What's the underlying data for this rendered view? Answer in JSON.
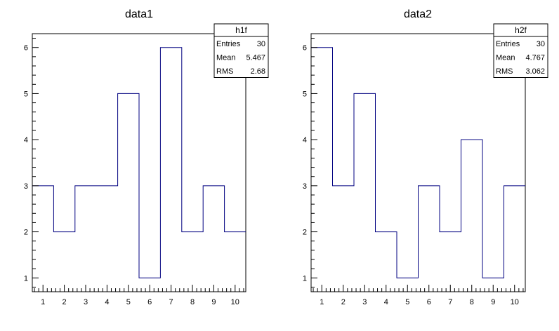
{
  "chart_data": [
    {
      "type": "histogram",
      "title": "data1",
      "xlabel": "",
      "ylabel": "",
      "xlim": [
        0.5,
        10.5
      ],
      "ylim": [
        0.7,
        6.3
      ],
      "bin_edges": [
        0.5,
        1.5,
        2.5,
        3.5,
        4.5,
        5.5,
        6.5,
        7.5,
        8.5,
        9.5,
        10.5
      ],
      "values": [
        3,
        2,
        3,
        3,
        5,
        1,
        6,
        2,
        3,
        2
      ],
      "line_color": "#000080",
      "x_ticks": [
        "1",
        "2",
        "3",
        "4",
        "5",
        "6",
        "7",
        "8",
        "9",
        "10"
      ],
      "y_ticks": [
        "1",
        "2",
        "3",
        "4",
        "5",
        "6"
      ],
      "stats": {
        "name": "h1f",
        "rows": [
          {
            "label": "Entries",
            "value": "30"
          },
          {
            "label": "Mean",
            "value": "5.467"
          },
          {
            "label": "RMS",
            "value": "2.68"
          }
        ]
      }
    },
    {
      "type": "histogram",
      "title": "data2",
      "xlabel": "",
      "ylabel": "",
      "xlim": [
        0.5,
        10.5
      ],
      "ylim": [
        0.7,
        6.3
      ],
      "bin_edges": [
        0.5,
        1.5,
        2.5,
        3.5,
        4.5,
        5.5,
        6.5,
        7.5,
        8.5,
        9.5,
        10.5
      ],
      "values": [
        6,
        3,
        5,
        2,
        1,
        3,
        2,
        4,
        1,
        3
      ],
      "line_color": "#000080",
      "x_ticks": [
        "1",
        "2",
        "3",
        "4",
        "5",
        "6",
        "7",
        "8",
        "9",
        "10"
      ],
      "y_ticks": [
        "1",
        "2",
        "3",
        "4",
        "5",
        "6"
      ],
      "stats": {
        "name": "h2f",
        "rows": [
          {
            "label": "Entries",
            "value": "30"
          },
          {
            "label": "Mean",
            "value": "4.767"
          },
          {
            "label": "RMS",
            "value": "3.062"
          }
        ]
      }
    }
  ]
}
